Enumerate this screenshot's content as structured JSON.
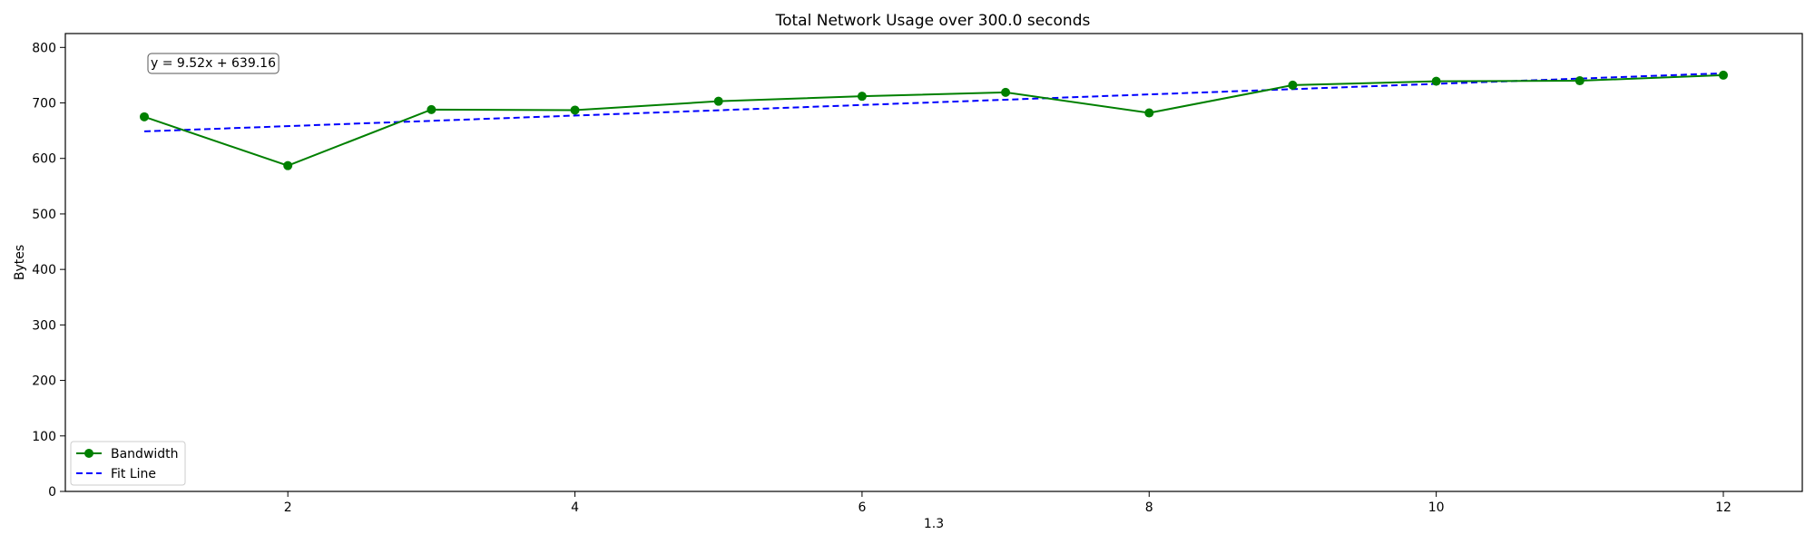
{
  "chart_data": {
    "type": "line",
    "title": "Total Network Usage over 300.0 seconds",
    "xlabel": "1.3",
    "ylabel": "Bytes",
    "xlim": [
      0.45,
      12.55
    ],
    "ylim": [
      0,
      825
    ],
    "xticks": [
      2,
      4,
      6,
      8,
      10,
      12
    ],
    "yticks": [
      0,
      100,
      200,
      300,
      400,
      500,
      600,
      700,
      800
    ],
    "grid": false,
    "legend_position": "lower-left",
    "annotation": "y = 9.52x + 639.16",
    "series": [
      {
        "name": "Bandwidth",
        "style": "solid-with-markers",
        "color": "#008000",
        "x": [
          1,
          2,
          3,
          4,
          5,
          6,
          7,
          8,
          9,
          10,
          11,
          12
        ],
        "y": [
          675,
          587,
          688,
          687,
          703,
          712,
          719,
          682,
          732,
          739,
          740,
          750
        ]
      },
      {
        "name": "Fit Line",
        "style": "dashed",
        "color": "#0000ff",
        "x": [
          1,
          12
        ],
        "y": [
          648.68,
          753.4
        ]
      }
    ]
  }
}
